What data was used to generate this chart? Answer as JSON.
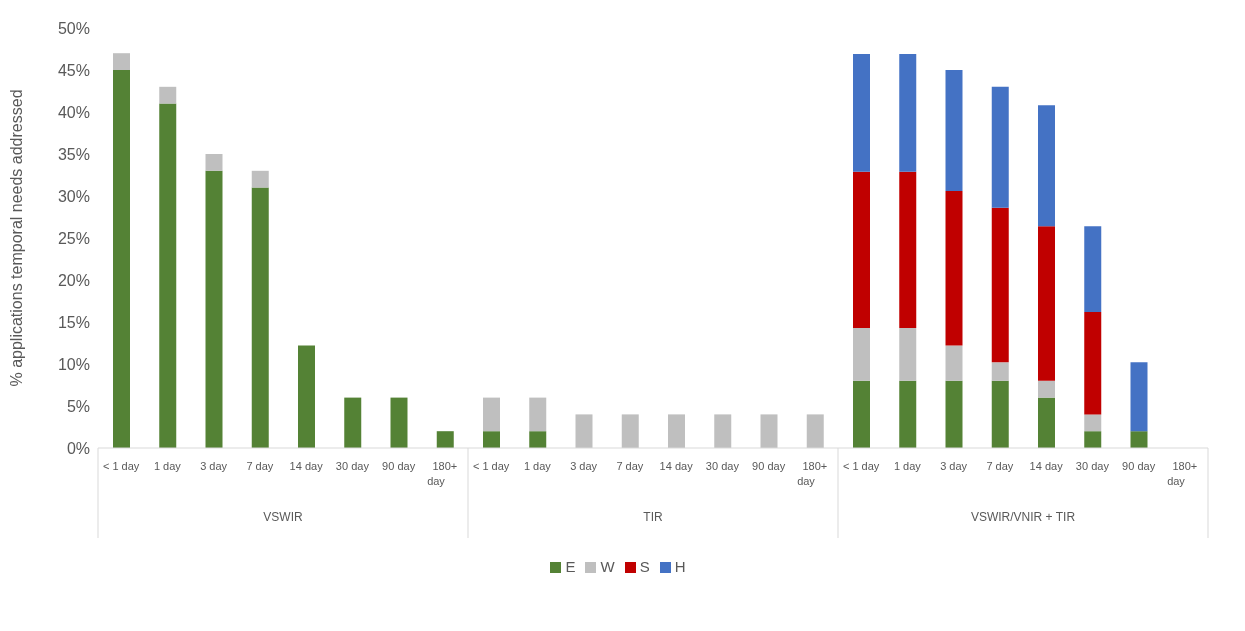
{
  "chart_data": {
    "type": "bar",
    "stacked": true,
    "ylabel": "% applications temporal needs addressed",
    "categories": [
      "< 1 day",
      "1 day",
      "3 day",
      "7 day",
      "14 day",
      "30 day",
      "90 day",
      "180+ day",
      "< 1 day",
      "1 day",
      "3 day",
      "7 day",
      "14 day",
      "30 day",
      "90 day",
      "180+ day",
      "< 1 day",
      "1 day",
      "3 day",
      "7 day",
      "14 day",
      "30 day",
      "90 day",
      "180+ day"
    ],
    "series": [
      {
        "name": "E",
        "color": "#548235",
        "values": [
          45,
          41,
          33,
          31,
          12.2,
          6,
          6,
          2,
          2,
          2,
          0,
          0,
          0,
          0,
          0,
          0,
          8,
          8,
          8,
          8,
          6,
          2,
          2,
          0
        ]
      },
      {
        "name": "W",
        "color": "#bfbfbf",
        "values": [
          2,
          2,
          2,
          2,
          0,
          0,
          0,
          0,
          4,
          4,
          4,
          4,
          4,
          4,
          4,
          4,
          6.3,
          6.3,
          4.2,
          2.2,
          2,
          2,
          0,
          0
        ]
      },
      {
        "name": "S",
        "color": "#c00000",
        "values": [
          0,
          0,
          0,
          0,
          0,
          0,
          0,
          0,
          0,
          0,
          0,
          0,
          0,
          0,
          0,
          0,
          18.6,
          18.6,
          18.4,
          18.4,
          18.4,
          12.2,
          0,
          0
        ]
      },
      {
        "name": "H",
        "color": "#4472c4",
        "values": [
          0,
          0,
          0,
          0,
          0,
          0,
          0,
          0,
          0,
          0,
          0,
          0,
          0,
          0,
          0,
          0,
          14,
          14,
          14.4,
          14.4,
          14.4,
          10.2,
          8.2,
          0
        ]
      }
    ],
    "ylim": [
      0,
      50
    ],
    "yticks": [
      {
        "value": 0,
        "label": "0%"
      },
      {
        "value": 5,
        "label": "5%"
      },
      {
        "value": 10,
        "label": "10%"
      },
      {
        "value": 15,
        "label": "15%"
      },
      {
        "value": 20,
        "label": "20%"
      },
      {
        "value": 25,
        "label": "25%"
      },
      {
        "value": 30,
        "label": "30%"
      },
      {
        "value": 35,
        "label": "35%"
      },
      {
        "value": 40,
        "label": "40%"
      },
      {
        "value": 45,
        "label": "45%"
      },
      {
        "value": 50,
        "label": "50%"
      }
    ],
    "annotations": [
      "VSWIR",
      "TIR",
      "VSWIR/VNIR + TIR"
    ],
    "grid": false,
    "legend": "bottom"
  }
}
